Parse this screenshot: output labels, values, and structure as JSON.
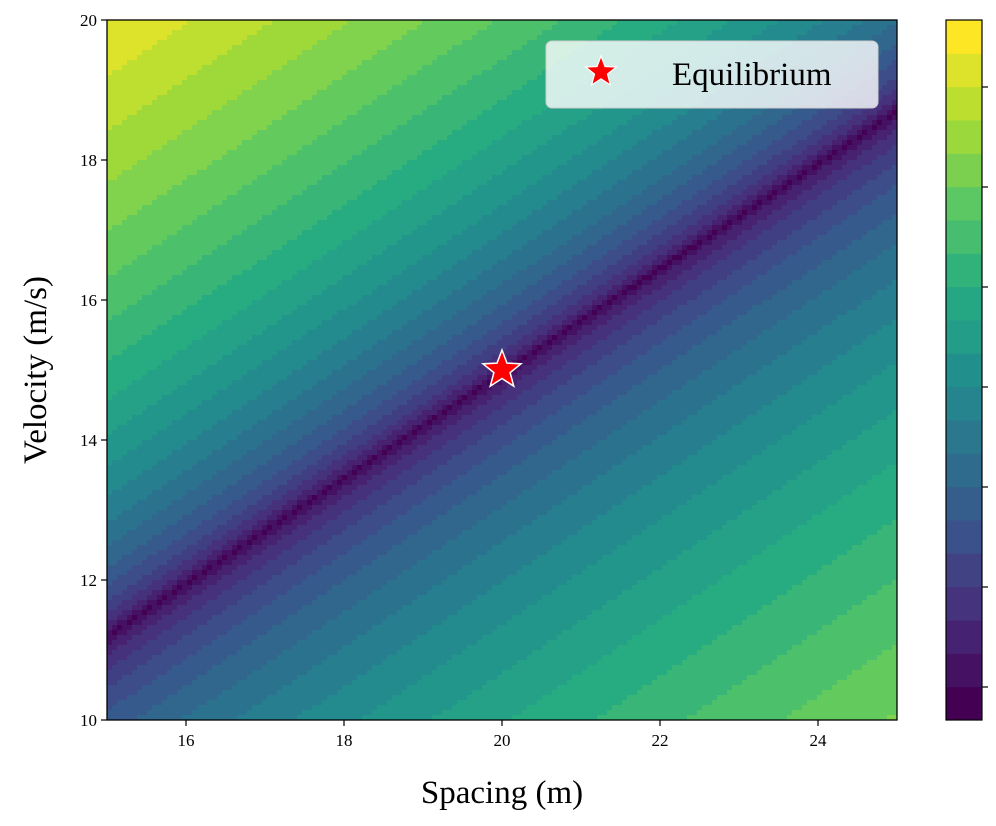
{
  "chart_data": {
    "type": "contourf",
    "title": "",
    "xlabel": "Spacing (m)",
    "ylabel": "Velocity (m/s)",
    "xlim": [
      15,
      25
    ],
    "ylim": [
      10,
      20
    ],
    "xticks": [
      16,
      18,
      20,
      22,
      24
    ],
    "yticks": [
      10,
      12,
      14,
      16,
      18,
      20
    ],
    "colormap": "viridis",
    "levels": 21,
    "colorbar_ticks_labeled": false,
    "minimum_line": {
      "x": [
        15,
        25
      ],
      "y": [
        11.2,
        18.7
      ]
    },
    "equilibrium_point": {
      "x": 20,
      "y": 15,
      "marker": "star",
      "color": "#ff0000"
    },
    "legend": {
      "entries": [
        "Equilibrium"
      ],
      "position": "upper right"
    },
    "grid": false
  }
}
